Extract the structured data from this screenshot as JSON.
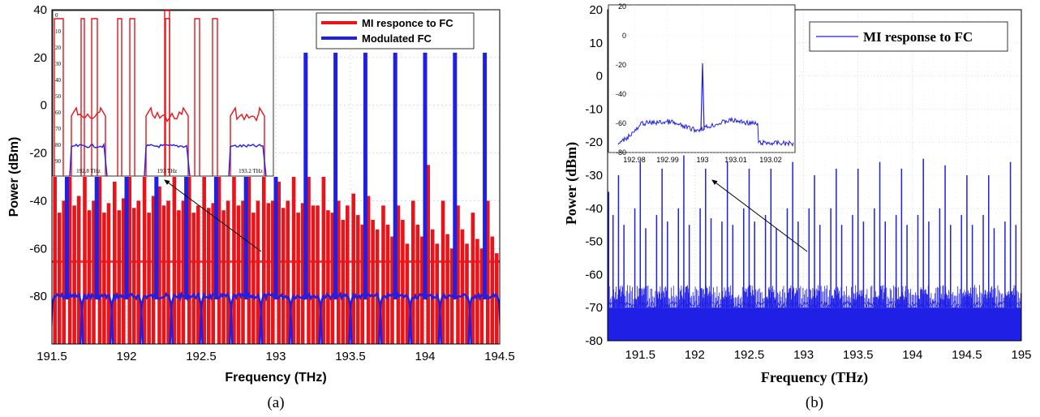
{
  "colors": {
    "red": "#e8141a",
    "blue": "#1f1fe6",
    "grid": "#c8c8c8"
  },
  "captions": {
    "a": "(a)",
    "b": "(b)"
  },
  "chart_data": [
    {
      "type": "line",
      "panel": "(a)",
      "xlabel": "Frequency (THz)",
      "ylabel": "Power (dBm)",
      "xlim": [
        191.5,
        194.5
      ],
      "ylim": [
        -100,
        40
      ],
      "xticks": [
        "191.5",
        "192",
        "192.5",
        "193",
        "193.5",
        "194",
        "194.5"
      ],
      "yticks": [
        "40",
        "20",
        "0",
        "-20",
        "-40",
        "-60",
        "-80"
      ],
      "legend_position": "top-right",
      "series": [
        {
          "name": "MI responce to FC",
          "color": "#e8141a",
          "peaks_x": [
            191.52,
            191.55,
            191.58,
            191.62,
            191.65,
            191.68,
            191.72,
            191.75,
            191.78,
            191.82,
            191.85,
            191.88,
            191.92,
            191.95,
            191.98,
            192.02,
            192.05,
            192.08,
            192.12,
            192.15,
            192.18,
            192.22,
            192.25,
            192.28,
            192.32,
            192.35,
            192.38,
            192.42,
            192.45,
            192.48,
            192.52,
            192.55,
            192.58,
            192.62,
            192.65,
            192.68,
            192.72,
            192.75,
            192.78,
            192.82,
            192.85,
            192.88,
            192.92,
            192.95,
            192.98,
            193.02,
            193.05,
            193.08,
            193.12,
            193.15,
            193.18,
            193.22,
            193.25,
            193.28,
            193.32,
            193.35,
            193.38,
            193.42,
            193.45,
            193.48,
            193.52,
            193.55,
            193.58,
            193.62,
            193.65,
            193.68,
            193.72,
            193.75,
            193.78,
            193.82,
            193.85,
            193.88,
            193.92,
            193.95,
            193.98,
            194.02,
            194.05,
            194.08,
            194.12,
            194.15,
            194.18,
            194.22,
            194.25,
            194.28,
            194.32,
            194.35,
            194.38,
            194.42,
            194.45,
            194.48
          ],
          "peaks_dbm": [
            -30,
            -45,
            -40,
            -30,
            -42,
            -38,
            -30,
            -44,
            -40,
            -30,
            -45,
            -41,
            -32,
            -44,
            -39,
            -30,
            -43,
            -40,
            -30,
            -45,
            -38,
            -34,
            -42,
            -40,
            -30,
            -44,
            -40,
            -30,
            -45,
            -42,
            -30,
            -43,
            -41,
            -30,
            -44,
            -40,
            -30,
            -42,
            -40,
            -30,
            -45,
            -40,
            -30,
            -41,
            -40,
            -32,
            -43,
            -40,
            -30,
            -45,
            -41,
            -30,
            -42,
            -42,
            -30,
            -44,
            -45,
            -40,
            -48,
            -42,
            -37,
            -46,
            -50,
            -38,
            -48,
            -52,
            -42,
            -50,
            -55,
            -42,
            -48,
            -58,
            -40,
            -50,
            -55,
            -25,
            -52,
            -58,
            -40,
            -54,
            -60,
            -42,
            -52,
            -58,
            -45,
            -56,
            -60,
            -40,
            -55,
            -62
          ],
          "floor_dbm": -65
        },
        {
          "name": "Modulated FC",
          "color": "#1f1fe6",
          "peaks_x": [
            191.6,
            191.8,
            192.0,
            192.2,
            192.4,
            192.6,
            192.8,
            193.0,
            193.2,
            193.4,
            193.6,
            193.8,
            194.0,
            194.2,
            194.4
          ],
          "peaks_dbm": [
            -30,
            -30,
            -30,
            -30,
            -30,
            -30,
            -30,
            -30,
            22,
            22,
            22,
            22,
            22,
            22,
            22
          ],
          "shoulder_dbm": -80
        }
      ],
      "inset": {
        "xticks": [
          "192.8 THz",
          "193 THz",
          "193.2 THz"
        ],
        "yticks": [
          "0",
          "10",
          "20",
          "30",
          "40",
          "50",
          "60",
          "70",
          "80",
          "90"
        ]
      }
    },
    {
      "type": "line",
      "panel": "(b)",
      "xlabel": "Frequency (THz)",
      "ylabel": "Power (dBm)",
      "xlim": [
        191.2,
        195
      ],
      "ylim": [
        -80,
        20
      ],
      "xticks": [
        "191.5",
        "192",
        "192.5",
        "193",
        "193.5",
        "194",
        "194.5",
        "195"
      ],
      "yticks": [
        "20",
        "10",
        "0",
        "-10",
        "-20",
        "-30",
        "-40",
        "-50",
        "-60",
        "-70",
        "-80"
      ],
      "legend_position": "top-right",
      "series": [
        {
          "name": "MI response to FC",
          "color": "#1f1fe6",
          "peaks_x": [
            191.25,
            191.3,
            191.35,
            191.45,
            191.5,
            191.55,
            191.65,
            191.7,
            191.75,
            191.85,
            191.9,
            191.95,
            192.05,
            192.1,
            192.15,
            192.25,
            192.3,
            192.35,
            192.45,
            192.5,
            192.55,
            192.65,
            192.7,
            192.75,
            192.85,
            192.9,
            192.95,
            193.05,
            193.1,
            193.15,
            193.25,
            193.3,
            193.35,
            193.45,
            193.5,
            193.55,
            193.65,
            193.7,
            193.75,
            193.85,
            193.9,
            193.95,
            194.05,
            194.1,
            194.15,
            194.25,
            194.3,
            194.35,
            194.45,
            194.5,
            194.55,
            194.65,
            194.7,
            194.75,
            194.85,
            194.9,
            194.95
          ],
          "peaks_dbm": [
            -42,
            -30,
            -45,
            -40,
            -26,
            -46,
            -42,
            -28,
            -44,
            -40,
            -24,
            -45,
            -40,
            -28,
            -43,
            -44,
            -26,
            -45,
            -40,
            -28,
            -44,
            -42,
            -28,
            -46,
            -40,
            -26,
            -44,
            -40,
            -30,
            -45,
            -40,
            -28,
            -45,
            -42,
            -28,
            -44,
            -40,
            -26,
            -44,
            -42,
            -28,
            -45,
            -42,
            -25,
            -44,
            -40,
            -27,
            -45,
            -42,
            -30,
            -45,
            -42,
            -30,
            -46,
            -44,
            -26,
            -45
          ],
          "noise_floor_dbm": -70
        }
      ],
      "inset": {
        "xticks": [
          "192.98",
          "192.99",
          "193",
          "193.01",
          "193.02"
        ],
        "yticks": [
          "20",
          "0",
          "-20",
          "-40",
          "-60",
          "-80"
        ]
      }
    }
  ]
}
